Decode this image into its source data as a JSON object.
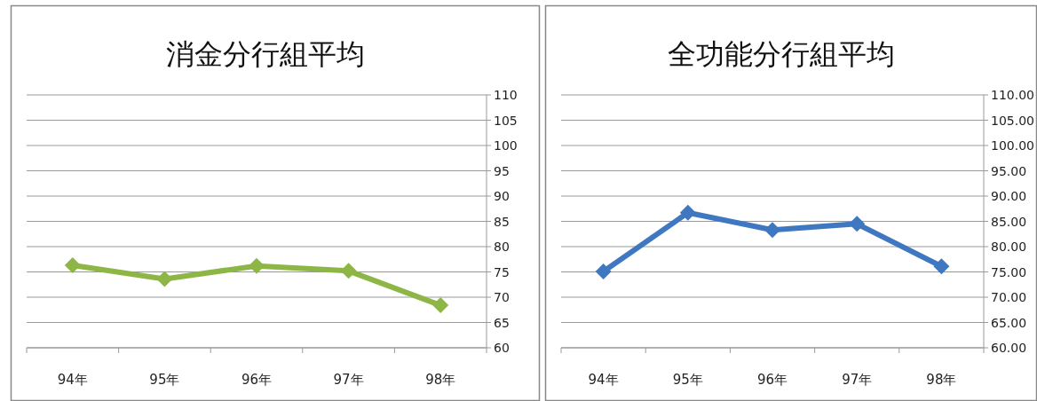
{
  "chart_data": [
    {
      "type": "line",
      "title": "消金分行組平均",
      "categories": [
        "94年",
        "95年",
        "96年",
        "97年",
        "98年"
      ],
      "series": [
        {
          "color": "#8db646",
          "values": [
            76.3,
            73.6,
            76.2,
            75.2,
            68.4
          ]
        }
      ],
      "ylim": [
        60,
        110
      ],
      "yticks": [
        60,
        65,
        70,
        75,
        80,
        85,
        90,
        95,
        100,
        105,
        110
      ],
      "grid": "y",
      "marker": "diamond"
    },
    {
      "type": "line",
      "title": "全功能分行組平均",
      "categories": [
        "94年",
        "95年",
        "96年",
        "97年",
        "98年"
      ],
      "series": [
        {
          "color": "#3f78c0",
          "values": [
            75.1,
            86.7,
            83.3,
            84.5,
            76.1
          ]
        }
      ],
      "ylim": [
        60,
        110
      ],
      "yticks": [
        {
          "value": 60,
          "label": "60.00"
        },
        {
          "value": 65,
          "label": "65.00"
        },
        {
          "value": 70,
          "label": "70.00"
        },
        {
          "value": 75,
          "label": "75.00"
        },
        {
          "value": 80,
          "label": "80.00"
        },
        {
          "value": 85,
          "label": "85.00"
        },
        {
          "value": 90,
          "label": "90.00"
        },
        {
          "value": 95,
          "label": "95.00"
        },
        {
          "value": 100,
          "label": "100.00"
        },
        {
          "value": 105,
          "label": "105.00"
        },
        {
          "value": 110,
          "label": "110.00"
        }
      ],
      "grid": "y",
      "marker": "diamond"
    }
  ]
}
